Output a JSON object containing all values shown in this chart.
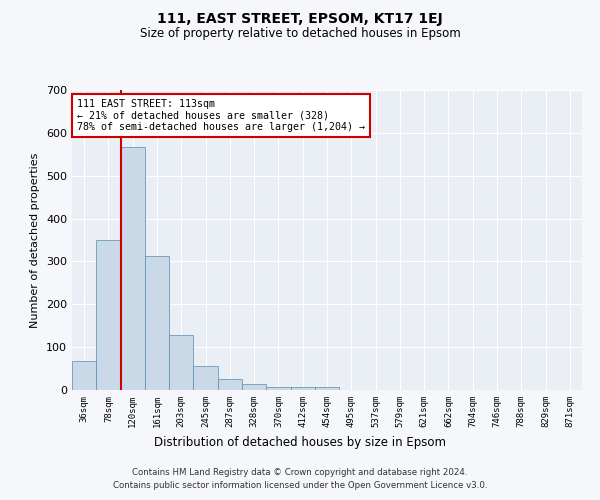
{
  "title": "111, EAST STREET, EPSOM, KT17 1EJ",
  "subtitle": "Size of property relative to detached houses in Epsom",
  "xlabel": "Distribution of detached houses by size in Epsom",
  "ylabel": "Number of detached properties",
  "bar_labels": [
    "36sqm",
    "78sqm",
    "120sqm",
    "161sqm",
    "203sqm",
    "245sqm",
    "287sqm",
    "328sqm",
    "370sqm",
    "412sqm",
    "454sqm",
    "495sqm",
    "537sqm",
    "579sqm",
    "621sqm",
    "662sqm",
    "704sqm",
    "746sqm",
    "788sqm",
    "829sqm",
    "871sqm"
  ],
  "bar_values": [
    68,
    350,
    568,
    313,
    128,
    57,
    25,
    14,
    6,
    8,
    8,
    0,
    0,
    0,
    0,
    0,
    0,
    0,
    0,
    0,
    0
  ],
  "bar_color": "#c9d9e8",
  "bar_edge_color": "#5a8ab0",
  "ylim": [
    0,
    700
  ],
  "yticks": [
    0,
    100,
    200,
    300,
    400,
    500,
    600,
    700
  ],
  "property_bin_index": 2,
  "annotation_text": "111 EAST STREET: 113sqm\n← 21% of detached houses are smaller (328)\n78% of semi-detached houses are larger (1,204) →",
  "annotation_box_color": "#ffffff",
  "annotation_box_edge_color": "#cc0000",
  "red_line_color": "#cc0000",
  "background_color": "#eaeff5",
  "grid_color": "#ffffff",
  "footer_line1": "Contains HM Land Registry data © Crown copyright and database right 2024.",
  "footer_line2": "Contains public sector information licensed under the Open Government Licence v3.0."
}
